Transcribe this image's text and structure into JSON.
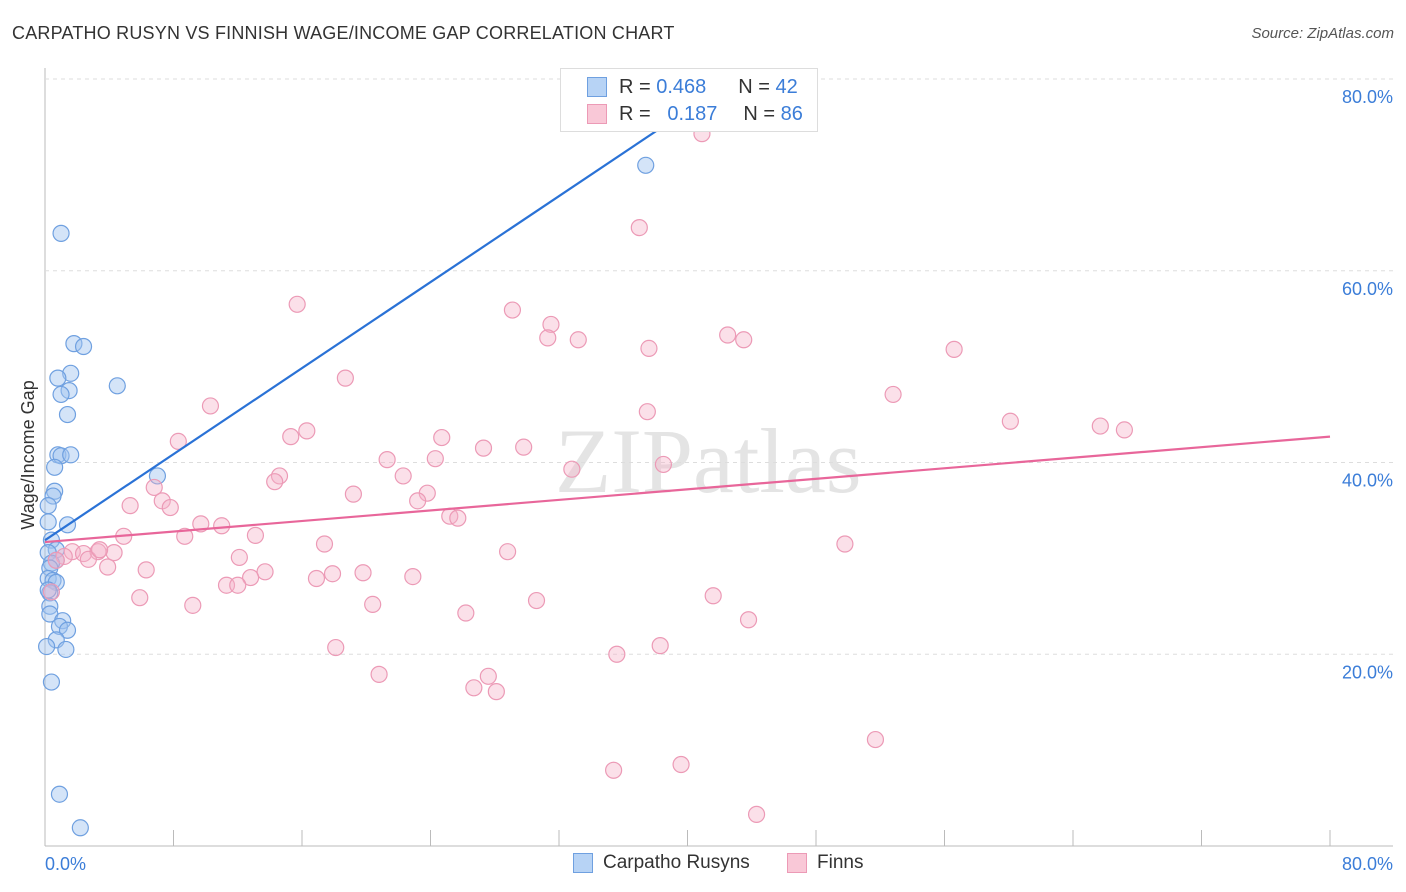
{
  "title": "CARPATHO RUSYN VS FINNISH WAGE/INCOME GAP CORRELATION CHART",
  "source": "Source: ZipAtlas.com",
  "watermark": "ZIPatlas",
  "colors": {
    "blue": "#3b7dd8",
    "blue_fill": "#a9c9f2",
    "pink": "#e8669a",
    "pink_fill": "#f5b8cc"
  },
  "legend": {
    "r_label": "R =",
    "n_label": "N =",
    "blue_r": "0.468",
    "blue_n": "42",
    "pink_r": "0.187",
    "pink_n": "86"
  },
  "chart_data": {
    "type": "scatter",
    "title": "CARPATHO RUSYN VS FINNISH WAGE/INCOME GAP CORRELATION CHART",
    "xlabel": "",
    "ylabel": "Wage/Income Gap",
    "xlim": [
      0,
      80
    ],
    "ylim": [
      0,
      80
    ],
    "x_tick_labels": [
      "0.0%",
      "80.0%"
    ],
    "y_tick_labels": [
      {
        "v": 80,
        "label": "80.0%"
      },
      {
        "v": 60,
        "label": "60.0%"
      },
      {
        "v": 40,
        "label": "40.0%"
      },
      {
        "v": 20,
        "label": "20.0%"
      }
    ],
    "legend_position": "top-center",
    "series": [
      {
        "name": "Carpatho Rusyns",
        "trend": [
          [
            0,
            31.9
          ],
          [
            42,
            79.0
          ]
        ],
        "points": [
          [
            1.0,
            63.9
          ],
          [
            37.4,
            71.0
          ],
          [
            1.8,
            52.4
          ],
          [
            2.4,
            52.1
          ],
          [
            1.6,
            49.3
          ],
          [
            0.8,
            48.8
          ],
          [
            4.5,
            48.0
          ],
          [
            1.5,
            47.5
          ],
          [
            1.0,
            47.1
          ],
          [
            1.4,
            45.0
          ],
          [
            0.8,
            40.8
          ],
          [
            1.0,
            40.7
          ],
          [
            1.6,
            40.8
          ],
          [
            0.6,
            39.5
          ],
          [
            0.6,
            37.0
          ],
          [
            0.5,
            36.5
          ],
          [
            0.2,
            35.5
          ],
          [
            1.4,
            33.5
          ],
          [
            0.2,
            33.8
          ],
          [
            0.4,
            31.9
          ],
          [
            0.7,
            30.9
          ],
          [
            0.2,
            30.6
          ],
          [
            0.7,
            29.8
          ],
          [
            0.4,
            29.5
          ],
          [
            0.3,
            29.0
          ],
          [
            0.2,
            27.9
          ],
          [
            0.5,
            27.7
          ],
          [
            0.7,
            27.5
          ],
          [
            0.3,
            26.4
          ],
          [
            0.3,
            25.0
          ],
          [
            0.3,
            24.2
          ],
          [
            1.1,
            23.5
          ],
          [
            0.9,
            22.9
          ],
          [
            1.4,
            22.5
          ],
          [
            0.7,
            21.5
          ],
          [
            0.1,
            20.8
          ],
          [
            1.3,
            20.5
          ],
          [
            0.4,
            17.1
          ],
          [
            0.9,
            5.4
          ],
          [
            2.2,
            1.9
          ],
          [
            7.0,
            38.6
          ],
          [
            0.2,
            26.7
          ]
        ]
      },
      {
        "name": "Finns",
        "trend": [
          [
            0,
            31.7
          ],
          [
            80,
            42.7
          ]
        ],
        "points": [
          [
            40.9,
            74.3
          ],
          [
            37.0,
            64.5
          ],
          [
            15.7,
            56.5
          ],
          [
            29.1,
            55.9
          ],
          [
            31.5,
            54.4
          ],
          [
            31.3,
            53.0
          ],
          [
            33.2,
            52.8
          ],
          [
            42.5,
            53.3
          ],
          [
            43.5,
            52.8
          ],
          [
            37.6,
            51.9
          ],
          [
            56.6,
            51.8
          ],
          [
            18.7,
            48.8
          ],
          [
            52.8,
            47.1
          ],
          [
            10.3,
            45.9
          ],
          [
            37.5,
            45.3
          ],
          [
            60.1,
            44.3
          ],
          [
            65.7,
            43.8
          ],
          [
            67.2,
            43.4
          ],
          [
            8.3,
            42.2
          ],
          [
            16.3,
            43.3
          ],
          [
            15.3,
            42.7
          ],
          [
            24.7,
            42.6
          ],
          [
            27.3,
            41.5
          ],
          [
            29.8,
            41.6
          ],
          [
            21.3,
            40.3
          ],
          [
            24.3,
            40.4
          ],
          [
            38.5,
            39.8
          ],
          [
            32.8,
            39.3
          ],
          [
            14.6,
            38.6
          ],
          [
            14.3,
            38.0
          ],
          [
            22.3,
            38.6
          ],
          [
            6.8,
            37.4
          ],
          [
            19.2,
            36.7
          ],
          [
            23.8,
            36.8
          ],
          [
            7.3,
            36.0
          ],
          [
            23.2,
            36.0
          ],
          [
            7.8,
            35.3
          ],
          [
            5.3,
            35.5
          ],
          [
            25.2,
            34.4
          ],
          [
            25.7,
            34.2
          ],
          [
            9.7,
            33.6
          ],
          [
            11.0,
            33.4
          ],
          [
            4.9,
            32.3
          ],
          [
            8.7,
            32.3
          ],
          [
            13.1,
            32.4
          ],
          [
            17.4,
            31.5
          ],
          [
            49.8,
            31.5
          ],
          [
            28.8,
            30.7
          ],
          [
            1.7,
            30.7
          ],
          [
            2.4,
            30.5
          ],
          [
            3.3,
            30.7
          ],
          [
            4.3,
            30.6
          ],
          [
            2.7,
            29.9
          ],
          [
            1.2,
            30.2
          ],
          [
            12.1,
            30.1
          ],
          [
            3.9,
            29.1
          ],
          [
            6.3,
            28.8
          ],
          [
            13.7,
            28.6
          ],
          [
            17.9,
            28.4
          ],
          [
            19.8,
            28.5
          ],
          [
            16.9,
            27.9
          ],
          [
            12.8,
            28.0
          ],
          [
            22.9,
            28.1
          ],
          [
            11.3,
            27.2
          ],
          [
            12.0,
            27.2
          ],
          [
            5.9,
            25.9
          ],
          [
            41.6,
            26.1
          ],
          [
            9.2,
            25.1
          ],
          [
            20.4,
            25.2
          ],
          [
            30.6,
            25.6
          ],
          [
            26.2,
            24.3
          ],
          [
            43.8,
            23.6
          ],
          [
            18.1,
            20.7
          ],
          [
            38.3,
            20.9
          ],
          [
            35.6,
            20.0
          ],
          [
            20.8,
            17.9
          ],
          [
            27.6,
            17.7
          ],
          [
            26.7,
            16.5
          ],
          [
            28.1,
            16.1
          ],
          [
            51.7,
            11.1
          ],
          [
            35.4,
            7.9
          ],
          [
            39.6,
            8.5
          ],
          [
            44.3,
            3.3
          ],
          [
            0.4,
            26.5
          ],
          [
            0.7,
            29.8
          ],
          [
            3.4,
            30.9
          ]
        ]
      }
    ]
  }
}
